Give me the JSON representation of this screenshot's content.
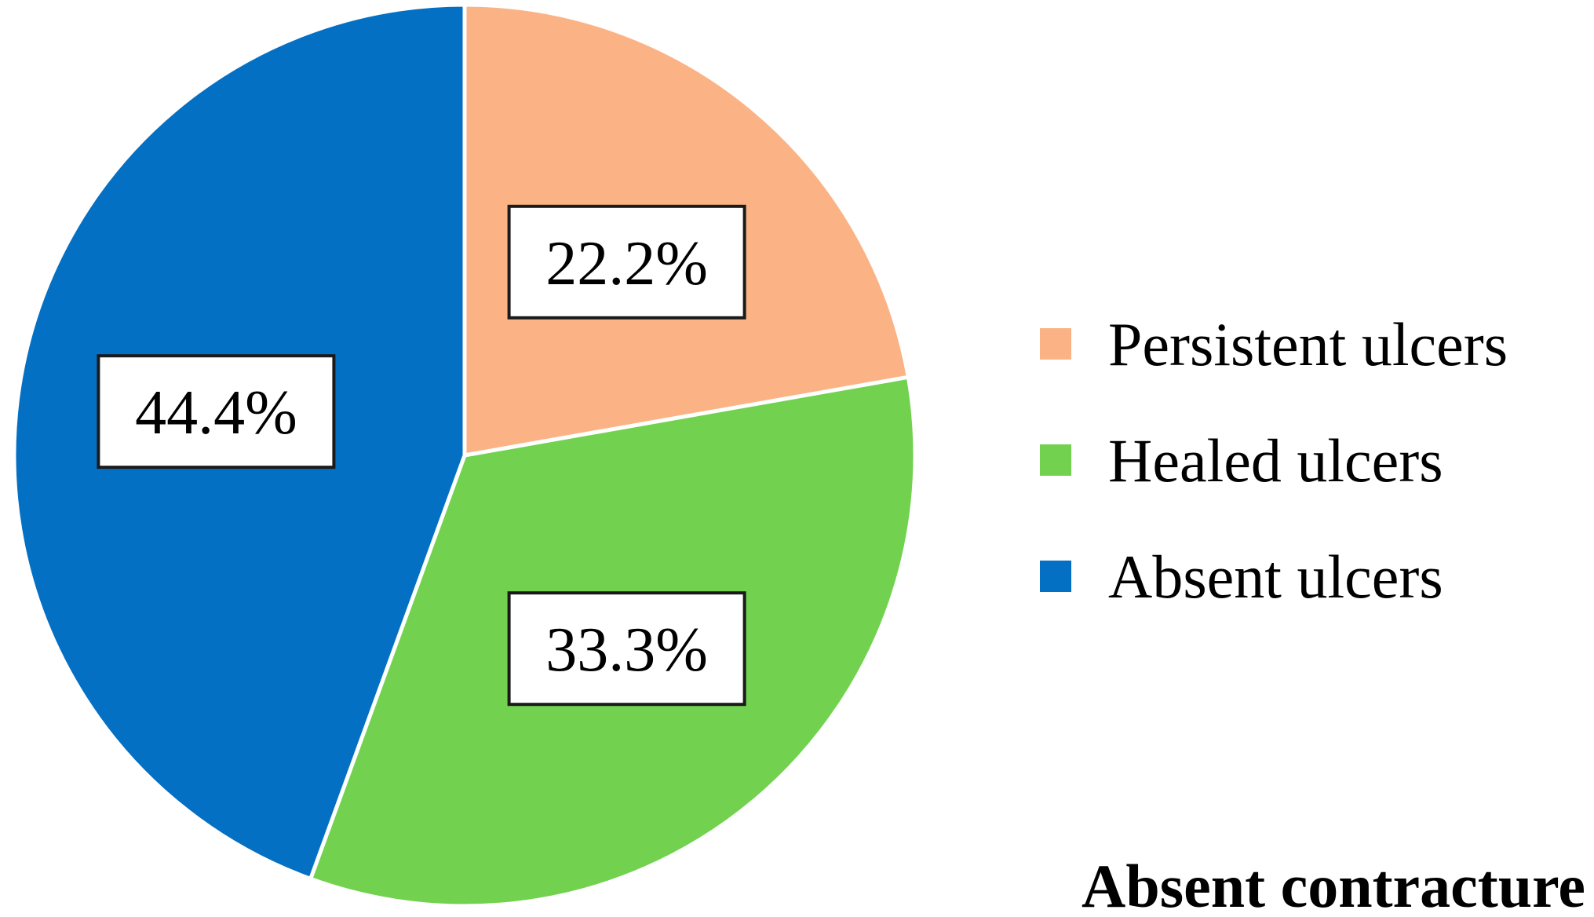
{
  "chart_data": {
    "type": "pie",
    "caption": "Absent contracture",
    "categories": [
      "Persistent ulcers",
      "Healed ulcers",
      "Absent ulcers"
    ],
    "values": [
      22.2,
      33.3,
      44.4
    ],
    "value_labels": [
      "22.2%",
      "33.3%",
      "44.4%"
    ],
    "colors": [
      "#FBB385",
      "#72D24F",
      "#0470C4"
    ],
    "start_angle": "12 o'clock",
    "direction": "clockwise",
    "legend_position": "right",
    "data_label_style": "boxed"
  }
}
